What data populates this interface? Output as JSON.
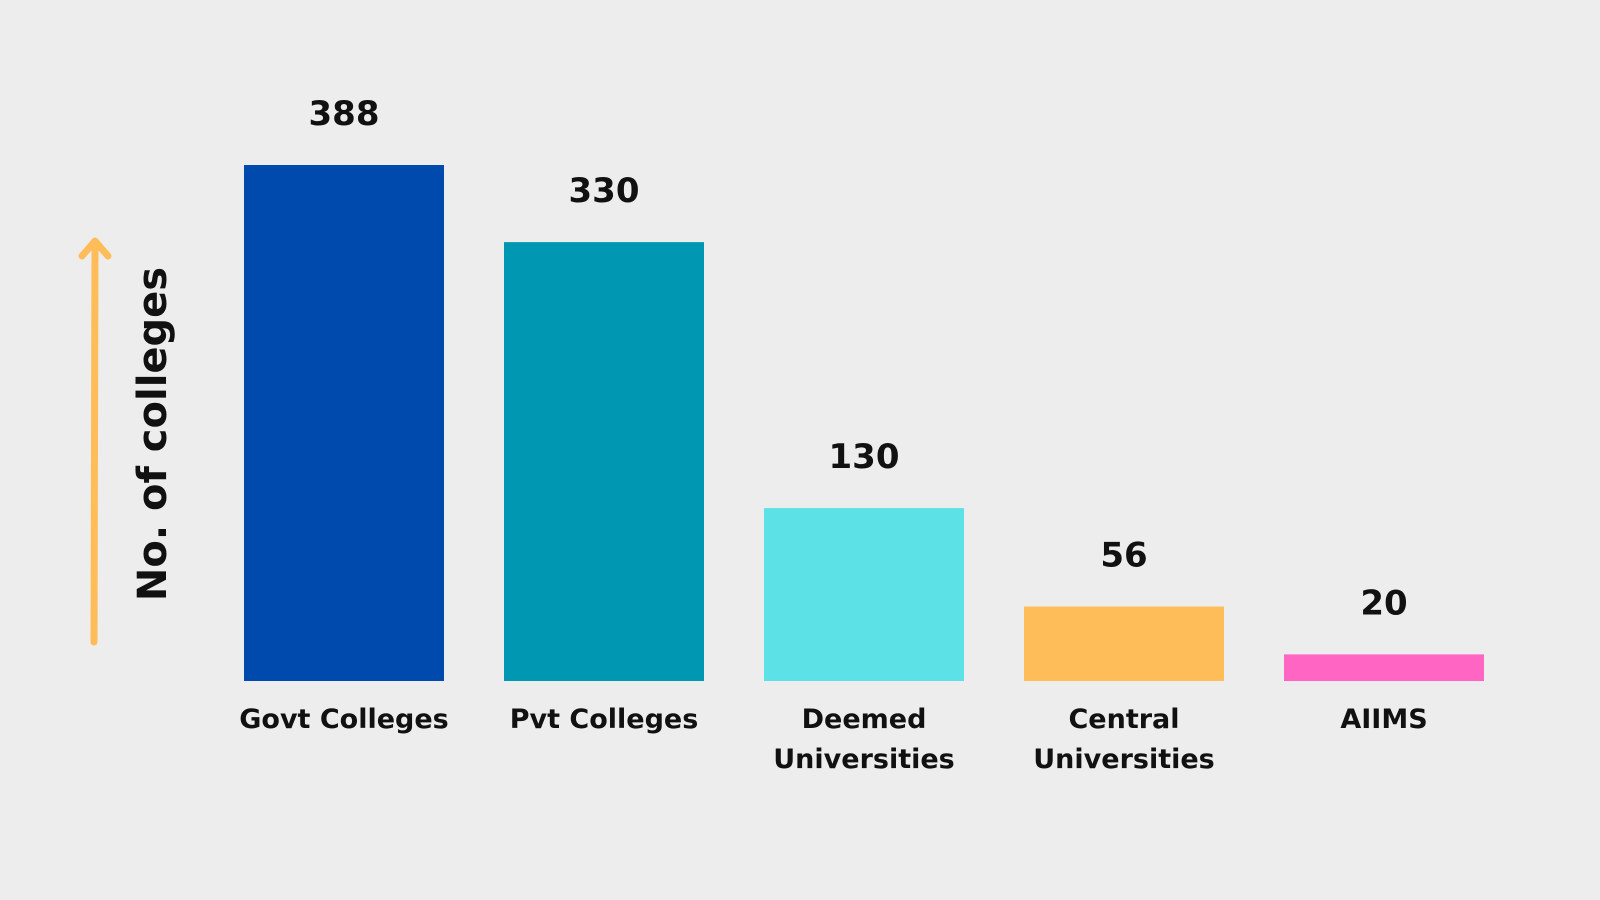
{
  "chart_data": {
    "type": "bar",
    "y_label": "No. of colleges",
    "categories": [
      "Govt Colleges",
      "Pvt Colleges",
      "Deemed Universities",
      "Central Universities",
      "AIIMS"
    ],
    "values": [
      388,
      330,
      130,
      56,
      20
    ],
    "colors": [
      "#004aad",
      "#0097b2",
      "#5ce1e6",
      "#ffbd59",
      "#ff66c4"
    ]
  }
}
